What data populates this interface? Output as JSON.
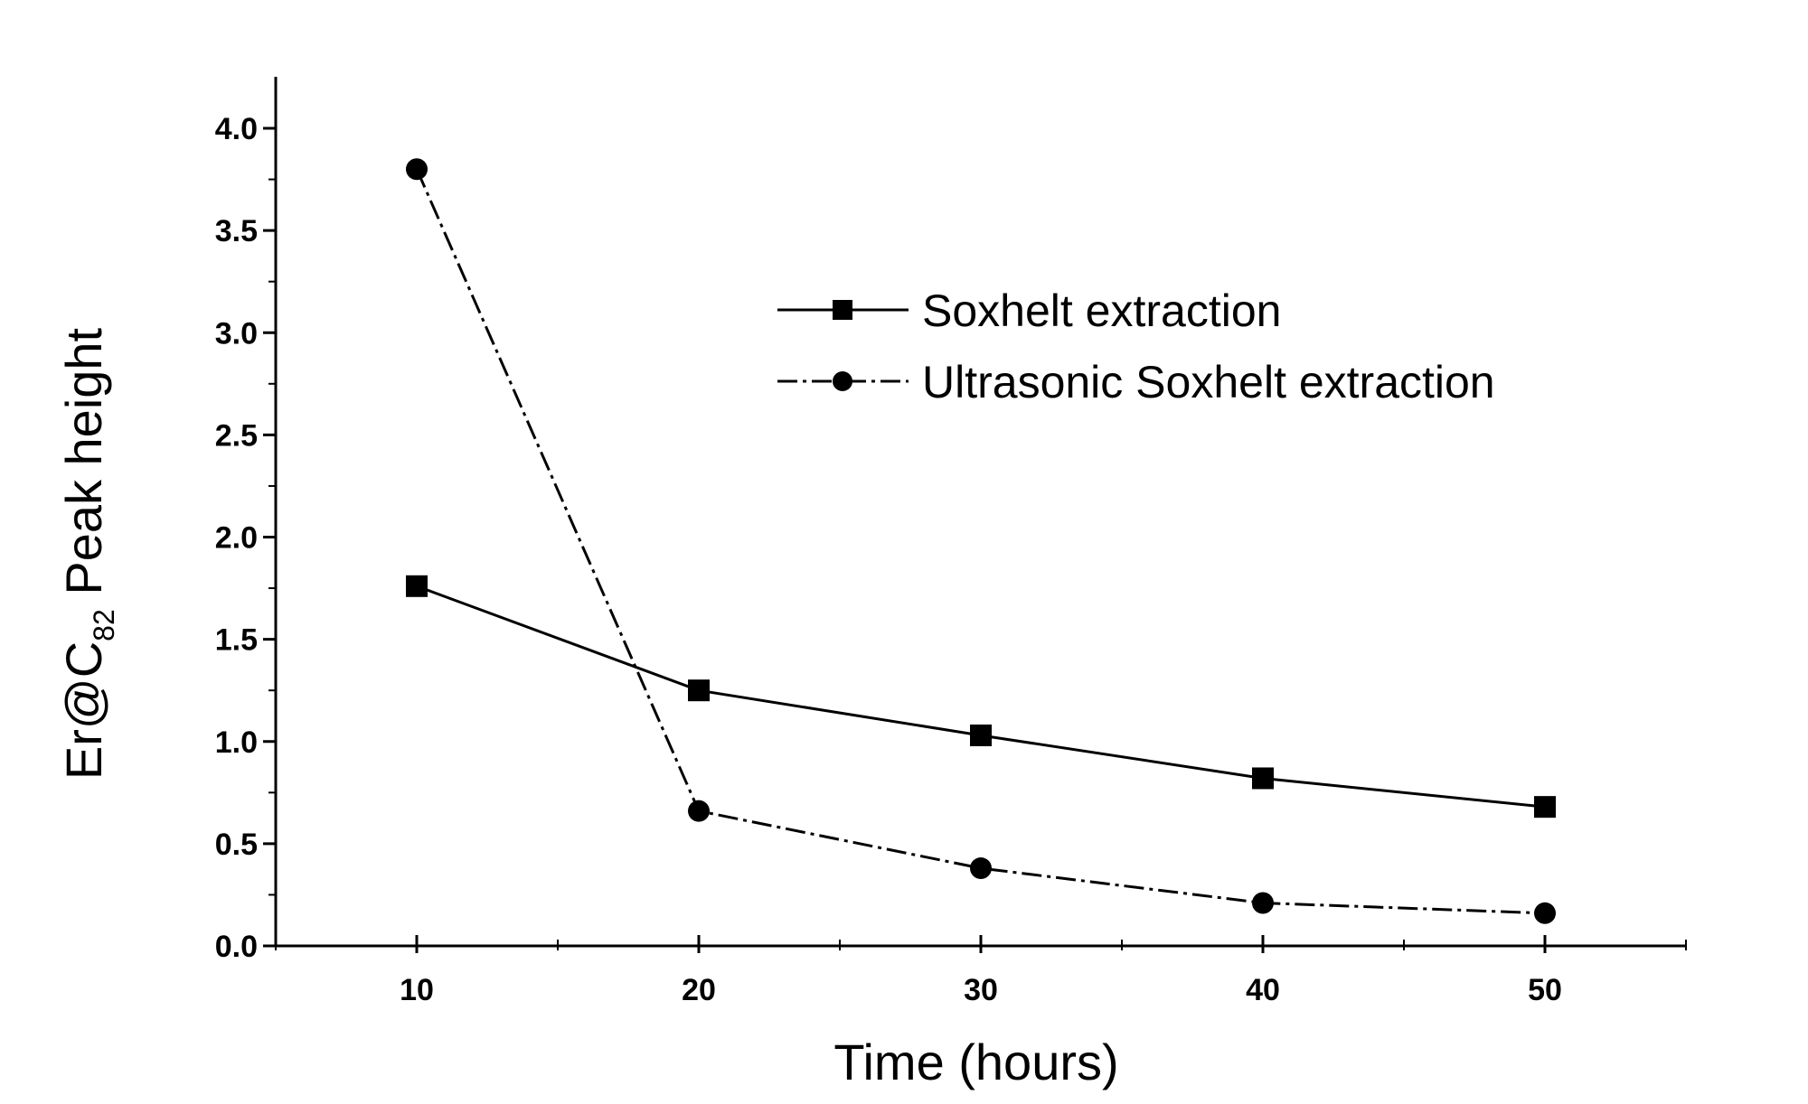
{
  "chart_data": {
    "type": "line",
    "title": "",
    "xlabel": "Time (hours)",
    "ylabel": {
      "main": "Er@C",
      "subscript": "82",
      "suffix": " Peak height"
    },
    "xlim": [
      5,
      55
    ],
    "ylim": [
      0,
      4.2
    ],
    "x_ticks": [
      10,
      20,
      30,
      40,
      50
    ],
    "x_tick_labels": [
      "10",
      "20",
      "30",
      "40",
      "50"
    ],
    "y_ticks": [
      0,
      0.5,
      1.0,
      1.5,
      2.0,
      2.5,
      3.0,
      3.5,
      4.0
    ],
    "y_tick_labels": [
      "0.0",
      "0.5",
      "1.0",
      "1.5",
      "2.0",
      "2.5",
      "3.0",
      "3.5",
      "4.0"
    ],
    "grid": false,
    "legend_position": "top-right",
    "x": [
      10,
      20,
      30,
      40,
      50
    ],
    "series": [
      {
        "name": "Soxhelt extraction",
        "marker": "square",
        "line_style": "solid",
        "values": [
          1.76,
          1.25,
          1.03,
          0.82,
          0.68
        ]
      },
      {
        "name": "Ultrasonic Soxhelt extraction",
        "marker": "circle",
        "line_style": "dashdot",
        "values": [
          3.8,
          0.66,
          0.38,
          0.21,
          0.16
        ]
      }
    ],
    "colors": {
      "ink": "#000000",
      "background": "#ffffff"
    }
  }
}
